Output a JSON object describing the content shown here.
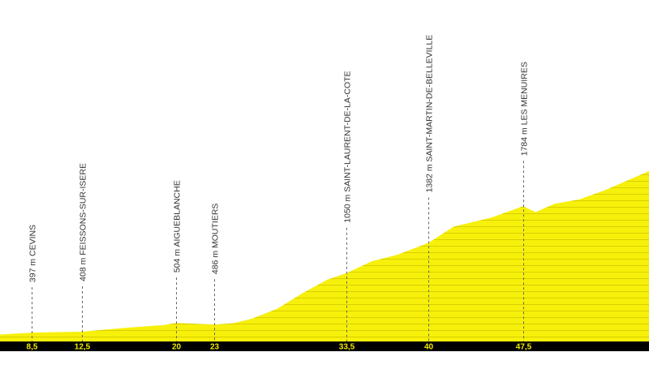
{
  "chart_data": {
    "type": "area",
    "fill_color": "#f7f00a",
    "stripe_color": "#d8cf00",
    "axis_bar_color": "#000000",
    "tick_label_color": "#f3e800",
    "xlim": [
      6,
      57.5
    ],
    "ylim": [
      300,
      2000
    ],
    "profile": [
      {
        "x": 6.0,
        "y": 376
      },
      {
        "x": 8.5,
        "y": 397
      },
      {
        "x": 12.5,
        "y": 408
      },
      {
        "x": 16.0,
        "y": 450
      },
      {
        "x": 19.0,
        "y": 480
      },
      {
        "x": 20.0,
        "y": 504
      },
      {
        "x": 21.5,
        "y": 495
      },
      {
        "x": 23.0,
        "y": 486
      },
      {
        "x": 24.5,
        "y": 500
      },
      {
        "x": 26.0,
        "y": 550
      },
      {
        "x": 28.0,
        "y": 660
      },
      {
        "x": 30.0,
        "y": 830
      },
      {
        "x": 32.0,
        "y": 980
      },
      {
        "x": 33.5,
        "y": 1050
      },
      {
        "x": 35.5,
        "y": 1180
      },
      {
        "x": 37.5,
        "y": 1250
      },
      {
        "x": 40.0,
        "y": 1382
      },
      {
        "x": 42.0,
        "y": 1560
      },
      {
        "x": 45.0,
        "y": 1660
      },
      {
        "x": 47.5,
        "y": 1784
      },
      {
        "x": 48.5,
        "y": 1720
      },
      {
        "x": 50.0,
        "y": 1810
      },
      {
        "x": 52.0,
        "y": 1860
      },
      {
        "x": 54.0,
        "y": 1960
      },
      {
        "x": 55.0,
        "y": 2020
      },
      {
        "x": 57.5,
        "y": 2170
      }
    ],
    "waypoints": [
      {
        "km": 8.5,
        "km_label": "8,5",
        "label": "397 m CEVINS"
      },
      {
        "km": 12.5,
        "km_label": "12,5",
        "label": "408 m FEISSONS-SUR-ISERE"
      },
      {
        "km": 20,
        "km_label": "20",
        "label": "504 m AIGUEBLANCHE"
      },
      {
        "km": 23,
        "km_label": "23",
        "label": "486 m MOUTIERS"
      },
      {
        "km": 33.5,
        "km_label": "33,5",
        "label": "1050 m SAINT-LAURENT-DE-LA-COTE"
      },
      {
        "km": 40,
        "km_label": "40",
        "label": "1382 m SAINT-MARTIN-DE-BELLEVILLE"
      },
      {
        "km": 47.5,
        "km_label": "47,5",
        "label": "1784 m LES MENUIRES"
      }
    ]
  }
}
